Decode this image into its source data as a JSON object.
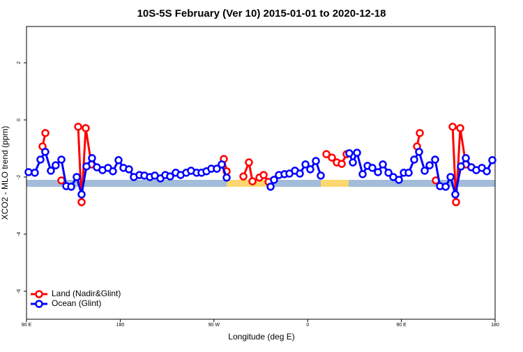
{
  "chart_data": {
    "type": "line",
    "title": "10S-5S February (Ver 10)   2015-01-01 to 2020-12-18",
    "x_label": "Longitude (deg E)",
    "y_label": "XCO2 - MLO trend (ppm)",
    "xlim": [
      90,
      540
    ],
    "ylim": [
      -6.98,
      3.27
    ],
    "xticks": [
      {
        "value": 90,
        "label": "90 E"
      },
      180,
      {
        "value": 270,
        "label": "90 W"
      },
      {
        "value": 360,
        "label": "0"
      },
      {
        "value": 450,
        "label": "90 E"
      },
      {
        "value": 540,
        "label": "180"
      }
    ],
    "yticks": [
      -6,
      -4,
      -2,
      0,
      2
    ],
    "legend": "bottomleft",
    "series": [
      {
        "name": "Land (Nadir&Glint)",
        "color": "#ff0000",
        "x": [
          105.4,
          108.1,
          null,
          123.5,
          null,
          139.6,
          142.9,
          146.9,
          152.3,
          null,
          279.5,
          282.2,
          null,
          298.3,
          303.6,
          307,
          313.7,
          317.7,
          322.4,
          null,
          378,
          383.3,
          388,
          392.7,
          397.4,
          null,
          465,
          467.7,
          null,
          483.1,
          null,
          499.2,
          502.5,
          506.5,
          511.9
        ],
        "values": [
          -0.93,
          -0.46,
          null,
          -2.12,
          null,
          -0.24,
          -2.88,
          -0.29,
          -1.56,
          null,
          -1.37,
          -1.8,
          null,
          -1.98,
          -1.49,
          -2.15,
          -2.02,
          -1.93,
          -2.17,
          null,
          -1.2,
          -1.32,
          -1.49,
          -1.54,
          -1.2,
          null,
          -0.93,
          -0.46,
          null,
          -2.12,
          null,
          -0.24,
          -2.88,
          -0.29,
          -1.56
        ]
      },
      {
        "name": "Ocean (Glint)",
        "color": "#0000ff",
        "x": [
          92,
          98,
          103.4,
          108,
          113.4,
          118,
          123.5,
          128.2,
          132.9,
          138.2,
          142.9,
          147.6,
          152.9,
          157.6,
          163,
          168.3,
          173,
          178.4,
          183.1,
          188.4,
          193.1,
          198.5,
          203.2,
          208.5,
          213.2,
          218.6,
          223.3,
          227.9,
          233.3,
          238,
          243.4,
          248,
          253.4,
          258.1,
          262.8,
          267.5,
          272.8,
          277.5,
          282.2,
          null,
          324.4,
          327.7,
          332.4,
          337.8,
          342.5,
          347.8,
          352.5,
          357.9,
          362.5,
          367.9,
          372.6,
          null,
          400,
          403.4,
          407.4,
          412.8,
          417.5,
          422.1,
          427.5,
          432.2,
          437.6,
          442.2,
          447.6,
          452.3,
          457,
          462.3,
          467,
          472.4,
          477.1,
          482.4,
          487.1,
          492.5,
          497.2,
          501.8,
          507.2,
          511.9,
          517.2,
          521.9,
          527.3,
          532,
          537.3
        ],
        "values": [
          -1.83,
          -1.85,
          -1.39,
          -1.12,
          -1.78,
          -1.59,
          -1.39,
          -2.32,
          -2.34,
          -2.0,
          -2.61,
          -1.63,
          -1.34,
          -1.66,
          -1.76,
          -1.68,
          -1.8,
          -1.41,
          -1.68,
          -1.73,
          -2.0,
          -1.93,
          -1.95,
          -2.0,
          -1.95,
          -2.05,
          -1.93,
          -1.98,
          -1.85,
          -1.93,
          -1.85,
          -1.78,
          -1.85,
          -1.85,
          -1.8,
          -1.71,
          -1.71,
          -1.56,
          -2.02,
          null,
          -2.34,
          -2.1,
          -1.93,
          -1.9,
          -1.88,
          -1.78,
          -1.88,
          -1.56,
          -1.73,
          -1.44,
          -1.95,
          null,
          -1.17,
          -1.49,
          -1.15,
          -1.9,
          -1.61,
          -1.68,
          -1.83,
          -1.56,
          -1.85,
          -2.0,
          -2.1,
          -1.85,
          -1.85,
          -1.39,
          -1.12,
          -1.78,
          -1.59,
          -1.39,
          -2.32,
          -2.34,
          -2.0,
          -2.61,
          -1.63,
          -1.34,
          -1.66,
          -1.76,
          -1.68,
          -1.8,
          -1.41
        ]
      }
    ]
  }
}
